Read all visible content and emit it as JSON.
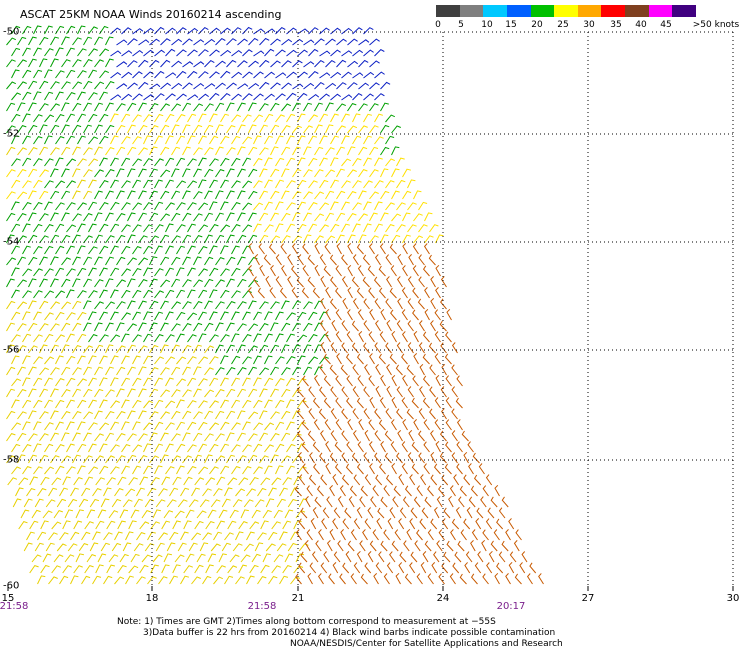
{
  "title": "ASCAT 25KM NOAA Winds 20160214 ascending",
  "legend": {
    "labels": [
      "0",
      "5",
      "10",
      "15",
      "20",
      "25",
      "30",
      "35",
      "40",
      "45",
      ">50 knots"
    ],
    "colors": [
      "#3f3f3f",
      "#7f7f7f",
      "#00c8ff",
      "#0060ff",
      "#00c000",
      "#ffff00",
      "#ffa800",
      "#ff0000",
      "#7f3f1f",
      "#ff00ff",
      "#400080"
    ]
  },
  "axes": {
    "x_ticks": [
      "15",
      "18",
      "21",
      "24",
      "27",
      "30"
    ],
    "y_ticks": [
      "-50",
      "-52",
      "-54",
      "-56",
      "-58",
      "-60"
    ],
    "times": [
      "21:58",
      "21:58",
      "20:17"
    ]
  },
  "notes": {
    "line1": "Note: 1) Times are GMT 2)Times along bottom correspond to measurement at −55S",
    "line2": "3)Data buffer is 22 hrs from 20160214 4) Black wind barbs indicate possible contamination",
    "line3": "NOAA/NESDIS/Center for Satellite Applications and Research"
  },
  "wind_field": {
    "regions": [
      {
        "name": "north-strip",
        "knots": 15,
        "color": "#0b1fc4"
      },
      {
        "name": "northwest",
        "knots": 20,
        "color": "#00a000"
      },
      {
        "name": "central-light",
        "knots": 22,
        "color": "#ffe000"
      },
      {
        "name": "southeast",
        "knots": 30,
        "color": "#c85a00"
      },
      {
        "name": "south",
        "knots": 25,
        "color": "#e8d000"
      }
    ]
  }
}
